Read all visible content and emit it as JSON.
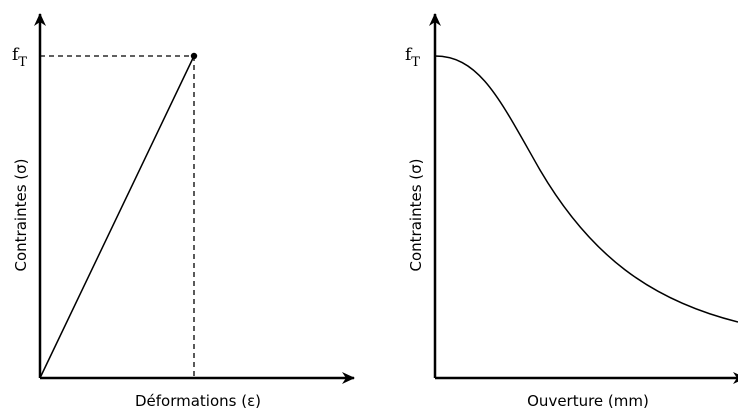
{
  "left": {
    "peak_label": "f",
    "peak_subscript": "T",
    "y_label": "Contraintes (σ)",
    "x_label": "Déformations (ε)"
  },
  "right": {
    "peak_label": "f",
    "peak_subscript": "T",
    "y_label": "Contraintes (σ)",
    "x_label": "Ouverture (mm)"
  }
}
